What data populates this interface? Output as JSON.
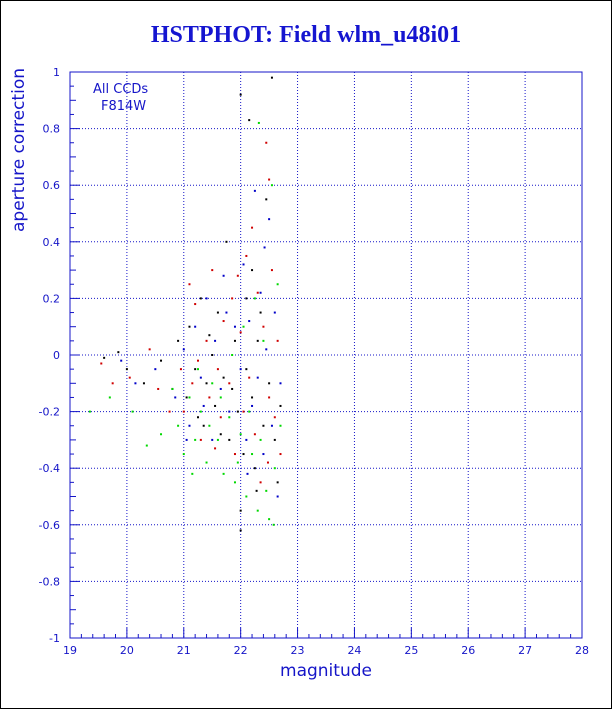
{
  "page": {
    "title": "HSTPHOT: Field wlm_u48i01"
  },
  "chart_data": {
    "type": "scatter",
    "title": "HSTPHOT: Field wlm_u48i01",
    "xlabel": "magnitude",
    "ylabel": "aperture correction",
    "xlim": [
      19,
      28
    ],
    "ylim": [
      -1,
      1
    ],
    "x_ticks": [
      "19",
      "20",
      "21",
      "22",
      "23",
      "24",
      "25",
      "26",
      "27",
      "28"
    ],
    "y_ticks": [
      "-1",
      "-0.8",
      "-0.6",
      "-0.4",
      "-0.2",
      "0",
      "0.2",
      "0.4",
      "0.6",
      "0.8",
      "1"
    ],
    "grid": true,
    "annotations": [
      "All CCDs",
      "F814W"
    ],
    "colors": {
      "axis": "#1515c8",
      "grid": "#1515c8",
      "title": "#1515d0"
    },
    "series": [
      {
        "color": "#000000",
        "points": [
          [
            19.6,
            -0.01
          ],
          [
            19.85,
            0.01
          ],
          [
            20.0,
            -0.05
          ],
          [
            20.3,
            -0.1
          ],
          [
            20.6,
            -0.02
          ],
          [
            20.8,
            -0.12
          ],
          [
            20.9,
            0.05
          ],
          [
            21.05,
            -0.15
          ],
          [
            21.1,
            0.1
          ],
          [
            21.2,
            -0.05
          ],
          [
            21.3,
            0.2
          ],
          [
            21.35,
            -0.25
          ],
          [
            21.4,
            -0.1
          ],
          [
            21.5,
            0.0
          ],
          [
            21.55,
            -0.18
          ],
          [
            21.6,
            0.15
          ],
          [
            21.7,
            -0.08
          ],
          [
            21.75,
            0.4
          ],
          [
            21.8,
            -0.3
          ],
          [
            21.85,
            -0.12
          ],
          [
            21.9,
            0.05
          ],
          [
            21.95,
            -0.2
          ],
          [
            22.0,
            0.92
          ],
          [
            22.0,
            -0.55
          ],
          [
            22.0,
            -0.62
          ],
          [
            22.05,
            -0.35
          ],
          [
            22.1,
            0.2
          ],
          [
            22.1,
            -0.05
          ],
          [
            22.15,
            0.83
          ],
          [
            22.2,
            0.3
          ],
          [
            22.2,
            -0.15
          ],
          [
            22.25,
            -0.4
          ],
          [
            22.3,
            0.05
          ],
          [
            22.35,
            0.15
          ],
          [
            22.4,
            -0.25
          ],
          [
            22.45,
            0.55
          ],
          [
            22.5,
            -0.1
          ],
          [
            22.55,
            0.98
          ],
          [
            22.6,
            -0.3
          ],
          [
            22.65,
            -0.45
          ],
          [
            22.7,
            -0.18
          ],
          [
            21.25,
            -0.22
          ],
          [
            21.45,
            0.07
          ],
          [
            21.65,
            -0.28
          ],
          [
            22.28,
            -0.48
          ]
        ]
      },
      {
        "color": "#d00000",
        "points": [
          [
            19.55,
            -0.03
          ],
          [
            19.75,
            -0.1
          ],
          [
            20.05,
            -0.08
          ],
          [
            20.4,
            0.02
          ],
          [
            20.55,
            -0.12
          ],
          [
            20.75,
            -0.2
          ],
          [
            20.95,
            -0.05
          ],
          [
            21.0,
            -0.2
          ],
          [
            21.1,
            0.25
          ],
          [
            21.15,
            -0.1
          ],
          [
            21.25,
            -0.02
          ],
          [
            21.3,
            -0.3
          ],
          [
            21.4,
            0.05
          ],
          [
            21.45,
            -0.15
          ],
          [
            21.5,
            0.3
          ],
          [
            21.6,
            -0.05
          ],
          [
            21.65,
            -0.22
          ],
          [
            21.7,
            0.12
          ],
          [
            21.8,
            -0.1
          ],
          [
            21.85,
            0.2
          ],
          [
            21.9,
            -0.35
          ],
          [
            22.0,
            0.08
          ],
          [
            22.05,
            -0.2
          ],
          [
            22.1,
            0.35
          ],
          [
            22.15,
            -0.08
          ],
          [
            22.2,
            0.45
          ],
          [
            22.25,
            -0.28
          ],
          [
            22.3,
            0.22
          ],
          [
            22.35,
            -0.45
          ],
          [
            22.4,
            0.1
          ],
          [
            22.45,
            0.75
          ],
          [
            22.5,
            0.62
          ],
          [
            22.5,
            -0.15
          ],
          [
            22.55,
            0.3
          ],
          [
            22.6,
            -0.22
          ],
          [
            22.65,
            0.05
          ],
          [
            22.7,
            -0.35
          ],
          [
            21.2,
            0.18
          ],
          [
            21.55,
            -0.33
          ],
          [
            21.95,
            0.28
          ],
          [
            22.48,
            -0.38
          ]
        ]
      },
      {
        "color": "#0000c8",
        "points": [
          [
            19.9,
            -0.02
          ],
          [
            20.15,
            -0.1
          ],
          [
            20.5,
            -0.05
          ],
          [
            20.85,
            -0.15
          ],
          [
            21.0,
            0.02
          ],
          [
            21.1,
            -0.25
          ],
          [
            21.2,
            0.1
          ],
          [
            21.3,
            -0.08
          ],
          [
            21.4,
            0.2
          ],
          [
            21.5,
            -0.3
          ],
          [
            21.55,
            0.05
          ],
          [
            21.65,
            -0.12
          ],
          [
            21.7,
            0.28
          ],
          [
            21.8,
            -0.2
          ],
          [
            21.9,
            0.1
          ],
          [
            22.0,
            -0.05
          ],
          [
            22.05,
            0.32
          ],
          [
            22.1,
            -0.3
          ],
          [
            22.15,
            0.12
          ],
          [
            22.2,
            -0.18
          ],
          [
            22.25,
            0.58
          ],
          [
            22.3,
            -0.08
          ],
          [
            22.35,
            0.22
          ],
          [
            22.4,
            -0.35
          ],
          [
            22.45,
            0.02
          ],
          [
            22.5,
            0.48
          ],
          [
            22.55,
            -0.25
          ],
          [
            22.6,
            0.15
          ],
          [
            22.65,
            -0.5
          ],
          [
            22.7,
            -0.1
          ],
          [
            21.35,
            -0.18
          ],
          [
            21.75,
            0.15
          ],
          [
            22.12,
            -0.42
          ],
          [
            22.42,
            0.38
          ],
          [
            21.05,
            -0.3
          ]
        ]
      },
      {
        "color": "#00d800",
        "points": [
          [
            19.35,
            -0.2
          ],
          [
            19.7,
            -0.15
          ],
          [
            20.1,
            -0.2
          ],
          [
            20.35,
            -0.32
          ],
          [
            20.6,
            -0.28
          ],
          [
            20.9,
            -0.25
          ],
          [
            21.0,
            -0.35
          ],
          [
            21.1,
            -0.15
          ],
          [
            21.2,
            -0.3
          ],
          [
            21.3,
            -0.2
          ],
          [
            21.4,
            -0.38
          ],
          [
            21.5,
            -0.1
          ],
          [
            21.6,
            -0.3
          ],
          [
            21.7,
            -0.42
          ],
          [
            21.8,
            -0.22
          ],
          [
            21.85,
            0.0
          ],
          [
            21.9,
            -0.45
          ],
          [
            22.0,
            -0.28
          ],
          [
            22.05,
            0.1
          ],
          [
            22.1,
            -0.5
          ],
          [
            22.15,
            -0.2
          ],
          [
            22.2,
            -0.35
          ],
          [
            22.25,
            0.2
          ],
          [
            22.3,
            -0.55
          ],
          [
            22.35,
            -0.3
          ],
          [
            22.4,
            0.05
          ],
          [
            22.45,
            -0.48
          ],
          [
            22.5,
            -0.58
          ],
          [
            22.55,
            0.6
          ],
          [
            22.6,
            -0.4
          ],
          [
            22.65,
            0.25
          ],
          [
            22.7,
            -0.25
          ],
          [
            21.25,
            -0.05
          ],
          [
            21.45,
            -0.25
          ],
          [
            21.65,
            -0.15
          ],
          [
            21.95,
            -0.38
          ],
          [
            22.32,
            0.82
          ],
          [
            22.58,
            -0.6
          ],
          [
            20.8,
            -0.12
          ],
          [
            21.15,
            -0.42
          ]
        ]
      }
    ]
  }
}
